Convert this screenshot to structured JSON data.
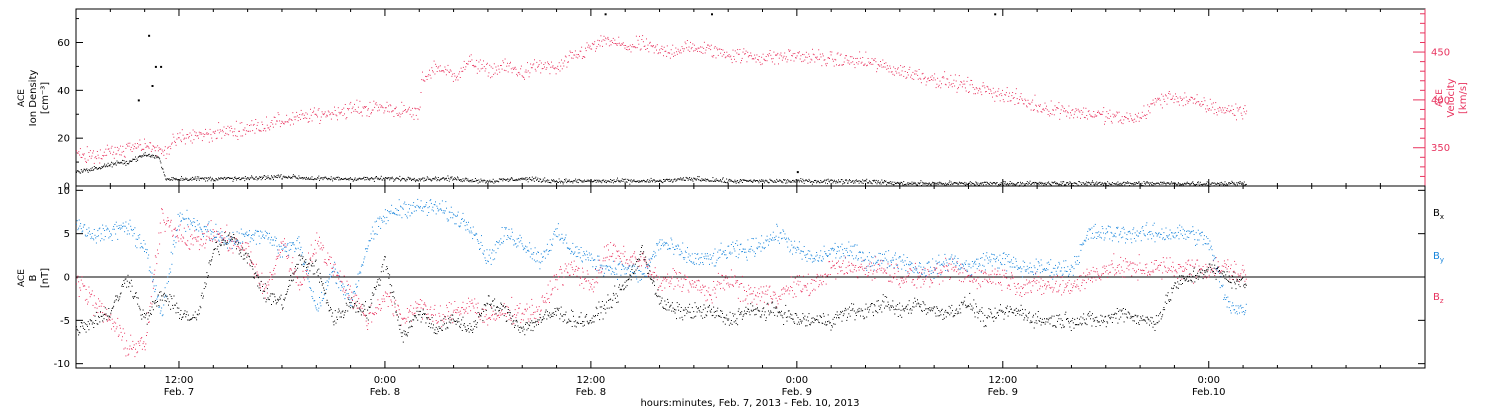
{
  "colors": {
    "black": "#000000",
    "pink": "#e8345f",
    "blue": "#1a86dc"
  },
  "figure": {
    "xlabel": "hours:minutes, Feb.  7, 2013 - Feb. 10, 2013"
  },
  "chart_data": [
    {
      "type": "scatter",
      "panel": "top",
      "ylabel_left": [
        "ACE",
        "Ion Density",
        "[cm⁻³]"
      ],
      "ylabel_right": [
        "ACE",
        "Velocity",
        "[km/s]"
      ],
      "xlim": [
        6,
        84.6
      ],
      "ylim_left": [
        0,
        74
      ],
      "ylim_right": [
        310,
        495
      ],
      "left_ticks": [
        "0",
        "20",
        "40",
        "60"
      ],
      "right_ticks": [
        "350",
        "400",
        "450"
      ],
      "x_ticks": [
        {
          "x": 12,
          "time": "12:00",
          "date": "Feb. 7"
        },
        {
          "x": 24,
          "time": "0:00",
          "date": "Feb. 8"
        },
        {
          "x": 36,
          "time": "12:00",
          "date": "Feb. 8"
        },
        {
          "x": 48,
          "time": "0:00",
          "date": "Feb. 9"
        },
        {
          "x": 60,
          "time": "12:00",
          "date": "Feb. 9"
        },
        {
          "x": 72,
          "time": "0:00",
          "date": "Feb.10"
        }
      ],
      "series": [
        {
          "key": "density",
          "axis": "left",
          "color": "black",
          "x": [
            6,
            7,
            8,
            9,
            10,
            10.8,
            11.2,
            12,
            14,
            16,
            18,
            20,
            22,
            24,
            26,
            28,
            30,
            32,
            34,
            36,
            38,
            40,
            42,
            44,
            46,
            48,
            50,
            52,
            54,
            56,
            58,
            60,
            62,
            64,
            66,
            68,
            70,
            72,
            73,
            74.2
          ],
          "y": [
            6,
            7,
            9,
            10,
            13,
            12,
            3,
            3,
            3,
            3,
            4,
            3,
            3,
            3,
            3,
            3,
            2,
            3,
            2,
            2,
            2,
            2,
            3,
            2,
            2,
            2,
            2,
            2,
            1,
            1,
            1,
            1,
            1,
            1,
            1,
            1,
            1,
            1,
            1,
            1
          ]
        },
        {
          "key": "velocity",
          "axis": "right",
          "color": "pink",
          "x": [
            6,
            7,
            8,
            9,
            10,
            11,
            12,
            14,
            16,
            18,
            20,
            22,
            24,
            25,
            26,
            26.1,
            27,
            28,
            29,
            30,
            31,
            32,
            33,
            34,
            35,
            36,
            37,
            38,
            39,
            40,
            42,
            44,
            46,
            48,
            50,
            52,
            54,
            56,
            58,
            60,
            62,
            64,
            66,
            67,
            68,
            69,
            70,
            71,
            72,
            73,
            74.2
          ],
          "y": [
            345,
            340,
            345,
            350,
            355,
            345,
            360,
            365,
            370,
            378,
            384,
            390,
            392,
            388,
            385,
            420,
            435,
            425,
            440,
            430,
            435,
            428,
            436,
            432,
            445,
            455,
            462,
            455,
            458,
            450,
            455,
            448,
            444,
            446,
            442,
            440,
            430,
            422,
            414,
            406,
            393,
            388,
            383,
            380,
            382,
            400,
            403,
            398,
            393,
            389,
            388
          ]
        }
      ],
      "isolated_points": [
        {
          "series": "density",
          "x": [
            10.2,
            10.6,
            10.9,
            9.6,
            10.4
          ],
          "y": [
            63,
            50,
            50,
            36,
            42
          ]
        },
        {
          "series": "density",
          "x": [
            43,
            59.5,
            36.8,
            48
          ],
          "y": [
            72,
            72,
            72,
            6
          ]
        }
      ]
    },
    {
      "type": "scatter",
      "panel": "bottom",
      "ylabel": [
        "ACE",
        "B",
        "[nT]"
      ],
      "xlim": [
        6,
        84.6
      ],
      "ylim": [
        -10.5,
        10.5
      ],
      "y_ticks": [
        "-10",
        "-5",
        "0",
        "5",
        "10"
      ],
      "zero_line": true,
      "legend_position": "right",
      "series": [
        {
          "key": "bx",
          "name": "Bx",
          "color": "black",
          "x": [
            6,
            7,
            8,
            9,
            10,
            11,
            12,
            13,
            14,
            15,
            16,
            17,
            18,
            19,
            20,
            21,
            22,
            23,
            24,
            25,
            26,
            27,
            28,
            29,
            30,
            31,
            32,
            33,
            34,
            35,
            36,
            37,
            38,
            39,
            40,
            41,
            42,
            43,
            44,
            45,
            46,
            47,
            48,
            49,
            50,
            51,
            52,
            53,
            54,
            55,
            56,
            57,
            58,
            59,
            60,
            61,
            62,
            63,
            64,
            65,
            66,
            67,
            68,
            69,
            70,
            71,
            72,
            73,
            74.2
          ],
          "y": [
            -6,
            -5,
            -4,
            0,
            -5,
            -2,
            -4,
            -5,
            3,
            5,
            2,
            -2,
            -3,
            2,
            1,
            -5,
            -3,
            -4,
            2,
            -7,
            -4,
            -6,
            -5,
            -6,
            -3,
            -4,
            -6,
            -5,
            -4,
            -5,
            -5,
            -3,
            -1,
            3,
            -3,
            -4,
            -4,
            -4,
            -5,
            -4,
            -4,
            -4,
            -5,
            -5,
            -5,
            -4,
            -4,
            -3,
            -4,
            -3,
            -4,
            -4,
            -3,
            -5,
            -4,
            -4,
            -5,
            -5,
            -5,
            -5,
            -5,
            -4,
            -5,
            -5,
            -1,
            0,
            1,
            0,
            -1
          ]
        },
        {
          "key": "by",
          "name": "By",
          "color": "blue",
          "x": [
            6,
            7,
            8,
            9,
            10,
            11,
            12,
            13,
            14,
            15,
            16,
            17,
            18,
            19,
            20,
            21,
            22,
            23,
            24,
            25,
            26,
            27,
            28,
            29,
            30,
            31,
            32,
            33,
            34,
            35,
            36,
            37,
            38,
            39,
            40,
            41,
            42,
            43,
            44,
            45,
            46,
            47,
            48,
            49,
            50,
            51,
            52,
            53,
            54,
            55,
            56,
            57,
            58,
            59,
            60,
            61,
            62,
            63,
            64,
            65,
            66,
            67,
            68,
            69,
            70,
            71,
            72,
            73,
            74.2
          ],
          "y": [
            6,
            5,
            5,
            6,
            3,
            -4,
            7,
            6,
            5,
            4,
            5,
            5,
            3,
            4,
            -4,
            1,
            -3,
            4,
            7,
            8,
            8,
            8,
            7,
            6,
            2,
            5,
            4,
            2,
            5,
            3,
            2,
            1,
            1,
            0,
            4,
            3,
            2,
            2,
            3,
            3,
            4,
            5,
            3,
            2,
            3,
            3,
            2,
            2,
            2,
            1,
            1,
            2,
            1,
            2,
            2,
            1,
            1,
            1,
            1,
            5,
            5,
            5,
            5,
            5,
            5,
            5,
            4,
            -3,
            -4
          ]
        },
        {
          "key": "bz",
          "name": "Bz",
          "color": "pink",
          "x": [
            6,
            7,
            8,
            9,
            10,
            11,
            12,
            13,
            14,
            15,
            16,
            17,
            18,
            19,
            20,
            21,
            22,
            23,
            24,
            25,
            26,
            27,
            28,
            29,
            30,
            31,
            32,
            33,
            34,
            35,
            36,
            37,
            38,
            39,
            40,
            41,
            42,
            43,
            44,
            45,
            46,
            47,
            48,
            49,
            50,
            51,
            52,
            53,
            54,
            55,
            56,
            57,
            58,
            59,
            60,
            61,
            62,
            63,
            64,
            65,
            66,
            67,
            68,
            69,
            70,
            71,
            72,
            73,
            74.2
          ],
          "y": [
            0,
            -3,
            -5,
            -8,
            -8,
            7,
            5,
            4,
            5,
            4,
            3,
            -2,
            4,
            -1,
            4,
            1,
            -2,
            -5,
            -2,
            -5,
            -3,
            -5,
            -4,
            -3,
            -5,
            -4,
            -4,
            -4,
            0,
            1,
            -1,
            3,
            2,
            2,
            -1,
            0,
            -1,
            -2,
            0,
            -2,
            -2,
            -2,
            -1,
            -1,
            1,
            1,
            1,
            1,
            0,
            0,
            0,
            1,
            0,
            0,
            0,
            -1,
            -1,
            -1,
            -1,
            0,
            1,
            1,
            1,
            1,
            1,
            1,
            1,
            1,
            0
          ]
        }
      ]
    }
  ]
}
